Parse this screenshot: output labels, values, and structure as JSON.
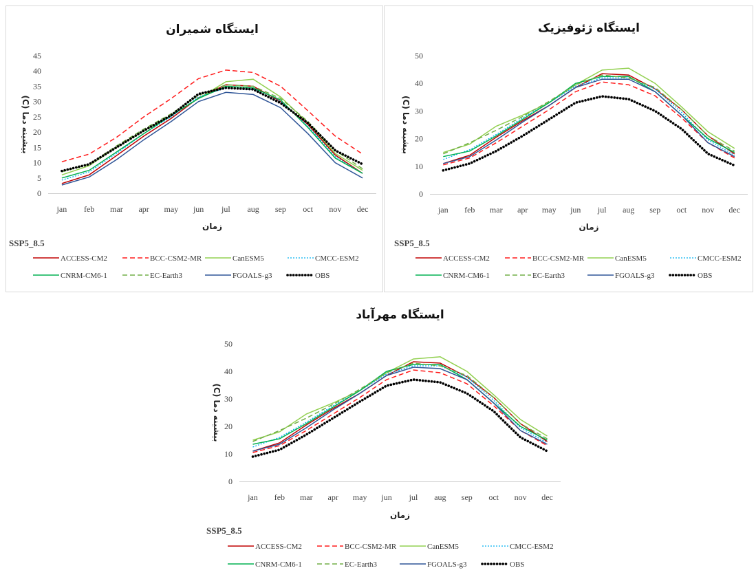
{
  "months": [
    "jan",
    "feb",
    "mar",
    "apr",
    "may",
    "jun",
    "jul",
    "aug",
    "sep",
    "oct",
    "nov",
    "dec"
  ],
  "legend_order": [
    "ACCESS-CM2",
    "BCC-CSM2-MR",
    "CanESM5",
    "CMCC-ESM2",
    "CNRM-CM6-1",
    "EC-Earth3",
    "FGOALS-g3",
    "OBS"
  ],
  "series_styles": {
    "ACCESS-CM2": {
      "color": "#c00000",
      "dash": "solid"
    },
    "BCC-CSM2-MR": {
      "color": "#ff1a1a",
      "dash": "dashed"
    },
    "CanESM5": {
      "color": "#92d050",
      "dash": "solid"
    },
    "CMCC-ESM2": {
      "color": "#00b0f0",
      "dash": "dotted"
    },
    "CNRM-CM6-1": {
      "color": "#00b050",
      "dash": "solid"
    },
    "EC-Earth3": {
      "color": "#70ad47",
      "dash": "dashed"
    },
    "FGOALS-g3": {
      "color": "#2f5597",
      "dash": "solid"
    },
    "OBS": {
      "color": "#000000",
      "dash": "dots"
    }
  },
  "chart_data": [
    {
      "type": "line",
      "title": "ایستگاه شمیران",
      "xlabel": "زمان",
      "ylabel": "بیشینه دما (C)",
      "scenario": "SSP5_8.5",
      "ylim": [
        0,
        45
      ],
      "yticks": [
        0,
        5,
        10,
        15,
        20,
        25,
        30,
        35,
        40,
        45
      ],
      "categories": [
        "jan",
        "feb",
        "mar",
        "apr",
        "may",
        "jun",
        "jul",
        "aug",
        "sep",
        "oct",
        "nov",
        "dec"
      ],
      "series": [
        {
          "name": "ACCESS-CM2",
          "values": [
            3.2,
            6.0,
            12.3,
            18.7,
            24.5,
            31.2,
            35.5,
            35.0,
            30.0,
            22.5,
            12.5,
            6.5
          ]
        },
        {
          "name": "BCC-CSM2-MR",
          "values": [
            10.3,
            12.8,
            18.3,
            25.0,
            31.0,
            37.5,
            40.3,
            39.5,
            35.0,
            27.0,
            18.7,
            12.8
          ]
        },
        {
          "name": "CanESM5",
          "values": [
            6.0,
            9.0,
            15.0,
            20.5,
            25.5,
            31.0,
            36.5,
            37.3,
            31.5,
            23.0,
            13.0,
            7.5
          ]
        },
        {
          "name": "CMCC-ESM2",
          "values": [
            4.3,
            7.0,
            13.0,
            19.5,
            25.0,
            31.5,
            34.5,
            34.0,
            30.0,
            22.0,
            12.0,
            6.5
          ]
        },
        {
          "name": "CNRM-CM6-1",
          "values": [
            5.0,
            7.5,
            13.5,
            19.5,
            25.5,
            31.0,
            35.0,
            34.5,
            30.5,
            21.5,
            11.5,
            6.5
          ]
        },
        {
          "name": "EC-Earth3",
          "values": [
            7.0,
            9.5,
            15.5,
            21.0,
            26.0,
            32.0,
            35.5,
            35.0,
            31.0,
            23.5,
            14.0,
            8.0
          ]
        },
        {
          "name": "FGOALS-g3",
          "values": [
            2.7,
            5.3,
            11.0,
            17.5,
            23.5,
            30.0,
            33.0,
            32.3,
            28.0,
            19.5,
            10.0,
            5.0
          ]
        },
        {
          "name": "OBS",
          "values": [
            7.3,
            9.5,
            15.0,
            20.5,
            25.5,
            32.5,
            34.5,
            34.0,
            29.5,
            23.0,
            14.0,
            9.5
          ]
        }
      ]
    },
    {
      "type": "line",
      "title": "ایستگاه ژئوفیزیک",
      "xlabel": "زمان",
      "ylabel": "بیشینه دما (C)",
      "scenario": "SSP5_8.5",
      "ylim": [
        0,
        50
      ],
      "yticks": [
        0,
        10,
        20,
        30,
        40,
        50
      ],
      "categories": [
        "jan",
        "feb",
        "mar",
        "apr",
        "may",
        "jun",
        "jul",
        "aug",
        "sep",
        "oct",
        "nov",
        "dec"
      ],
      "series": [
        {
          "name": "ACCESS-CM2",
          "values": [
            11.0,
            14.0,
            20.5,
            26.5,
            32.0,
            38.5,
            43.5,
            43.0,
            38.0,
            30.5,
            21.0,
            14.5
          ]
        },
        {
          "name": "BCC-CSM2-MR",
          "values": [
            10.5,
            13.0,
            18.5,
            24.5,
            30.5,
            37.0,
            40.5,
            39.5,
            35.5,
            27.5,
            18.5,
            13.0
          ]
        },
        {
          "name": "CanESM5",
          "values": [
            15.0,
            18.0,
            24.5,
            28.5,
            33.0,
            39.5,
            44.8,
            45.5,
            40.0,
            31.5,
            22.5,
            16.5
          ]
        },
        {
          "name": "CMCC-ESM2",
          "values": [
            12.5,
            16.0,
            21.5,
            27.5,
            33.0,
            39.0,
            42.0,
            42.0,
            38.0,
            29.5,
            19.5,
            14.0
          ]
        },
        {
          "name": "CNRM-CM6-1",
          "values": [
            13.5,
            15.5,
            21.0,
            27.0,
            33.0,
            40.0,
            42.5,
            42.5,
            37.0,
            28.5,
            20.0,
            15.0
          ]
        },
        {
          "name": "EC-Earth3",
          "values": [
            14.5,
            18.5,
            23.0,
            28.0,
            33.5,
            39.5,
            43.0,
            42.0,
            38.5,
            30.5,
            21.0,
            15.5
          ]
        },
        {
          "name": "FGOALS-g3",
          "values": [
            11.0,
            13.5,
            19.5,
            26.0,
            32.0,
            38.5,
            41.5,
            41.5,
            37.0,
            28.5,
            18.5,
            13.5
          ]
        },
        {
          "name": "OBS",
          "values": [
            8.5,
            11.0,
            15.5,
            21.0,
            27.0,
            33.0,
            35.3,
            34.3,
            30.0,
            23.5,
            14.5,
            10.3
          ]
        }
      ]
    },
    {
      "type": "line",
      "title": "ایستگاه مهرآباد",
      "xlabel": "زمان",
      "ylabel": "بیشینه دما (C)",
      "scenario": "SSP5_8.5",
      "ylim": [
        0,
        50
      ],
      "yticks": [
        0,
        10,
        20,
        30,
        40,
        50
      ],
      "categories": [
        "jan",
        "feb",
        "mar",
        "apr",
        "may",
        "jun",
        "jul",
        "aug",
        "sep",
        "oct",
        "nov",
        "dec"
      ],
      "series": [
        {
          "name": "ACCESS-CM2",
          "values": [
            11.0,
            14.0,
            20.5,
            26.5,
            32.0,
            38.5,
            43.5,
            43.0,
            38.0,
            30.5,
            21.0,
            14.5
          ]
        },
        {
          "name": "BCC-CSM2-MR",
          "values": [
            10.5,
            13.0,
            18.5,
            24.5,
            30.5,
            37.0,
            40.5,
            39.5,
            35.5,
            27.5,
            18.5,
            13.0
          ]
        },
        {
          "name": "CanESM5",
          "values": [
            15.0,
            18.0,
            24.5,
            28.5,
            33.0,
            39.5,
            44.5,
            45.3,
            40.0,
            31.5,
            22.5,
            16.5
          ]
        },
        {
          "name": "CMCC-ESM2",
          "values": [
            12.5,
            16.0,
            21.5,
            27.5,
            33.0,
            39.0,
            42.0,
            42.0,
            38.0,
            29.5,
            19.5,
            14.0
          ]
        },
        {
          "name": "CNRM-CM6-1",
          "values": [
            13.5,
            15.5,
            21.0,
            27.0,
            33.0,
            40.0,
            42.5,
            42.5,
            37.0,
            28.5,
            20.0,
            15.0
          ]
        },
        {
          "name": "EC-Earth3",
          "values": [
            14.5,
            18.5,
            23.0,
            28.0,
            33.5,
            39.5,
            43.0,
            42.0,
            38.5,
            30.5,
            21.0,
            15.5
          ]
        },
        {
          "name": "FGOALS-g3",
          "values": [
            11.0,
            13.5,
            19.5,
            26.0,
            32.0,
            38.5,
            41.5,
            41.0,
            37.0,
            28.5,
            18.5,
            13.5
          ]
        },
        {
          "name": "OBS",
          "values": [
            9.0,
            11.5,
            17.0,
            23.0,
            29.0,
            34.8,
            37.0,
            36.0,
            32.0,
            25.5,
            16.0,
            11.0
          ]
        }
      ]
    }
  ]
}
